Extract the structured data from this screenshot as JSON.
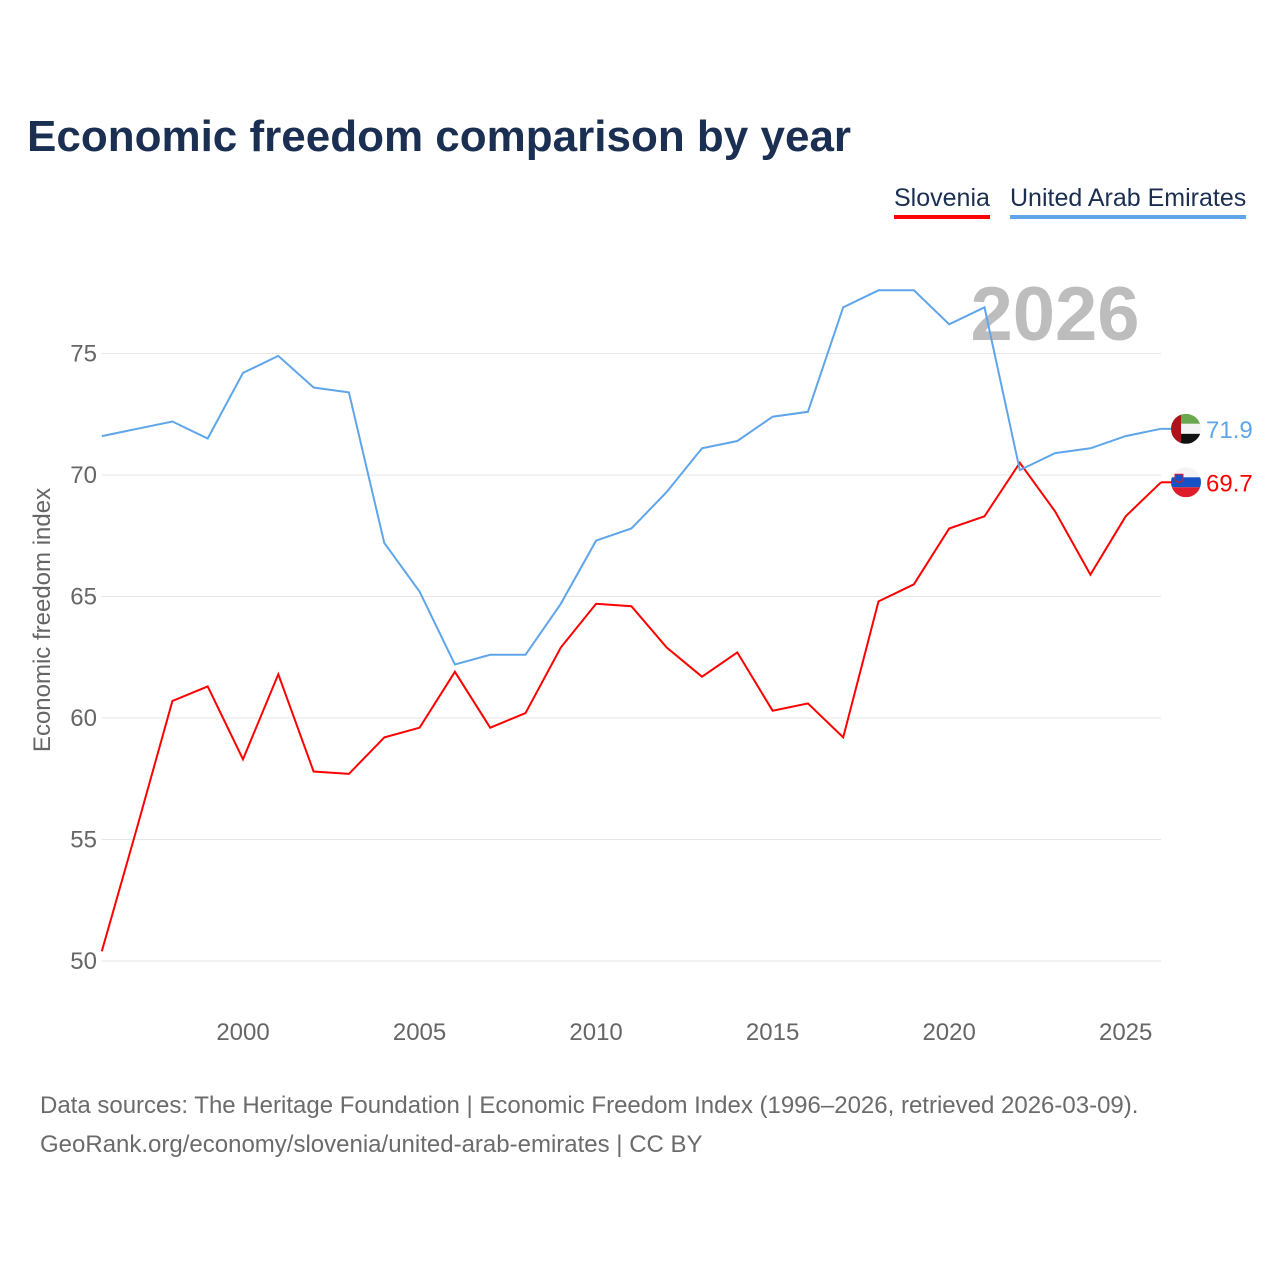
{
  "title": "Economic freedom comparison by year",
  "legend": [
    {
      "label": "Slovenia",
      "color": "#ff0000"
    },
    {
      "label": "United Arab Emirates",
      "color": "#5fa5ea"
    }
  ],
  "year_label": "2026",
  "footer": {
    "line1": "Data sources: The Heritage Foundation | Economic Freedom Index (1996–2026, retrieved 2026-03-09).",
    "line2": "GeoRank.org/economy/slovenia/united-arab-emirates | CC BY"
  },
  "chart_data": {
    "type": "line",
    "title": "Economic freedom comparison by year",
    "xlabel": "",
    "ylabel": "Economic freedom index",
    "xlim": [
      1996,
      2026
    ],
    "ylim": [
      48.5,
      79
    ],
    "xticks": [
      2000,
      2005,
      2010,
      2015,
      2020,
      2025
    ],
    "yticks": [
      50,
      55,
      60,
      65,
      70,
      75
    ],
    "grid": true,
    "legend_position": "top-right",
    "x": [
      1996,
      1997,
      1998,
      1999,
      2000,
      2001,
      2002,
      2003,
      2004,
      2005,
      2006,
      2007,
      2008,
      2009,
      2010,
      2011,
      2012,
      2013,
      2014,
      2015,
      2016,
      2017,
      2018,
      2019,
      2020,
      2021,
      2022,
      2023,
      2024,
      2025,
      2026
    ],
    "series": [
      {
        "name": "Slovenia",
        "color": "#ff0000",
        "end_label": "69.7",
        "flag": "slovenia-flag",
        "values": [
          50.4,
          55.5,
          60.7,
          61.3,
          58.3,
          61.8,
          57.8,
          57.7,
          59.2,
          59.6,
          61.9,
          59.6,
          60.2,
          62.9,
          64.7,
          64.6,
          62.9,
          61.7,
          62.7,
          60.3,
          60.6,
          59.2,
          64.8,
          65.5,
          67.8,
          68.3,
          70.5,
          68.5,
          65.9,
          68.3,
          69.7
        ]
      },
      {
        "name": "United Arab Emirates",
        "color": "#5fa5ea",
        "end_label": "71.9",
        "flag": "uae-flag",
        "values": [
          71.6,
          71.9,
          72.2,
          71.5,
          74.2,
          74.9,
          73.6,
          73.4,
          67.2,
          65.2,
          62.2,
          62.6,
          62.6,
          64.7,
          67.3,
          67.8,
          69.3,
          71.1,
          71.4,
          72.4,
          72.6,
          76.9,
          77.6,
          77.6,
          76.2,
          76.9,
          70.2,
          70.9,
          71.1,
          71.6,
          71.9
        ]
      }
    ]
  }
}
